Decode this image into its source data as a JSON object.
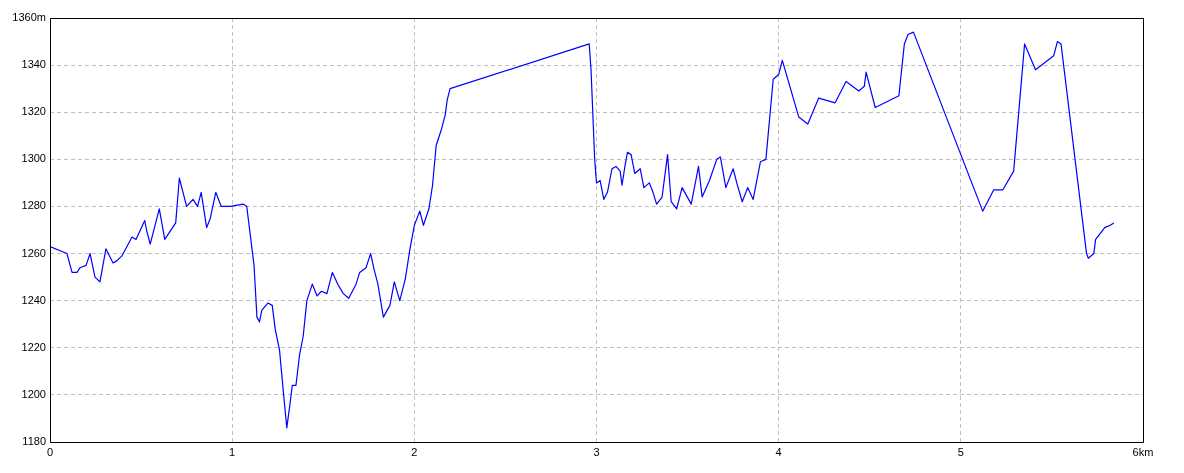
{
  "chart_data": {
    "type": "line",
    "xlim": [
      0,
      6
    ],
    "ylim": [
      1180,
      1360
    ],
    "xticks": [
      0,
      1,
      2,
      3,
      4,
      5,
      {
        "value": 6,
        "label": "6km"
      }
    ],
    "yticks": [
      1180,
      1200,
      1220,
      1240,
      1260,
      1280,
      1300,
      1320,
      1340,
      {
        "value": 1360,
        "label": "1360m"
      }
    ],
    "grid": true,
    "legend": false,
    "marker": "none",
    "line_style": "solid",
    "series": [
      {
        "color": "#0000ff",
        "x": [
          0,
          0.093,
          0.121,
          0.148,
          0.165,
          0.198,
          0.22,
          0.247,
          0.274,
          0.307,
          0.346,
          0.368,
          0.395,
          0.45,
          0.472,
          0.52,
          0.53,
          0.55,
          0.6,
          0.63,
          0.69,
          0.71,
          0.75,
          0.785,
          0.81,
          0.83,
          0.86,
          0.88,
          0.91,
          0.94,
          0.99,
          1.06,
          1.08,
          1.12,
          1.136,
          1.15,
          1.163,
          1.196,
          1.22,
          1.236,
          1.26,
          1.28,
          1.3,
          1.317,
          1.33,
          1.35,
          1.37,
          1.39,
          1.41,
          1.44,
          1.466,
          1.49,
          1.52,
          1.55,
          1.58,
          1.61,
          1.64,
          1.66,
          1.68,
          1.7,
          1.735,
          1.76,
          1.78,
          1.8,
          1.83,
          1.866,
          1.89,
          1.92,
          1.95,
          1.976,
          2.0,
          2.03,
          2.05,
          2.08,
          2.1,
          2.12,
          2.15,
          2.17,
          2.18,
          2.196,
          2.96,
          2.97,
          2.99,
          3.0,
          3.02,
          3.04,
          3.06,
          3.085,
          3.107,
          3.13,
          3.14,
          3.156,
          3.17,
          3.19,
          3.21,
          3.24,
          3.26,
          3.29,
          3.31,
          3.33,
          3.36,
          3.39,
          3.41,
          3.44,
          3.47,
          3.52,
          3.56,
          3.58,
          3.62,
          3.66,
          3.68,
          3.71,
          3.75,
          3.77,
          3.8,
          3.83,
          3.86,
          3.9,
          3.93,
          3.97,
          4.0,
          4.02,
          4.11,
          4.16,
          4.22,
          4.31,
          4.37,
          4.44,
          4.47,
          4.48,
          4.53,
          4.66,
          4.69,
          4.71,
          4.74,
          4.94,
          5.12,
          5.18,
          5.23,
          5.29,
          5.35,
          5.41,
          5.51,
          5.53,
          5.55,
          5.69,
          5.7,
          5.73,
          5.74,
          5.79,
          5.82,
          5.84
        ],
        "values": [
          1263,
          1260,
          1252,
          1252,
          1254,
          1255,
          1260,
          1250,
          1248,
          1262,
          1256,
          1257,
          1259,
          1267,
          1266,
          1274,
          1270,
          1264,
          1279,
          1266,
          1273,
          1292,
          1280,
          1283,
          1280,
          1286,
          1271,
          1275,
          1286,
          1280,
          1280,
          1281,
          1280,
          1255,
          1233,
          1231,
          1236,
          1239,
          1238,
          1228,
          1219,
          1202,
          1186,
          1196,
          1204,
          1204,
          1217,
          1225,
          1240,
          1247,
          1242,
          1244,
          1243,
          1252,
          1247,
          1243,
          1241,
          1244,
          1247,
          1252,
          1254,
          1260,
          1253,
          1247,
          1233,
          1238,
          1248,
          1240,
          1249,
          1262,
          1272,
          1278,
          1272,
          1279,
          1289,
          1306,
          1313,
          1319,
          1325,
          1330,
          1349,
          1338,
          1300,
          1290,
          1291,
          1283,
          1286,
          1296,
          1297,
          1295,
          1289,
          1297,
          1303,
          1302,
          1294,
          1296,
          1288,
          1290,
          1286,
          1281,
          1284,
          1302,
          1282,
          1279,
          1288,
          1281,
          1297,
          1284,
          1291,
          1300,
          1301,
          1288,
          1296,
          1290,
          1282,
          1288,
          1283,
          1299,
          1300,
          1334,
          1336,
          1342,
          1318,
          1315,
          1326,
          1324,
          1333,
          1329,
          1331,
          1337,
          1322,
          1327,
          1349,
          1353,
          1354,
          1314,
          1278,
          1287,
          1287,
          1295,
          1349,
          1338,
          1344,
          1350,
          1349,
          1260,
          1258,
          1260,
          1266,
          1271,
          1272,
          1273
        ]
      }
    ]
  }
}
